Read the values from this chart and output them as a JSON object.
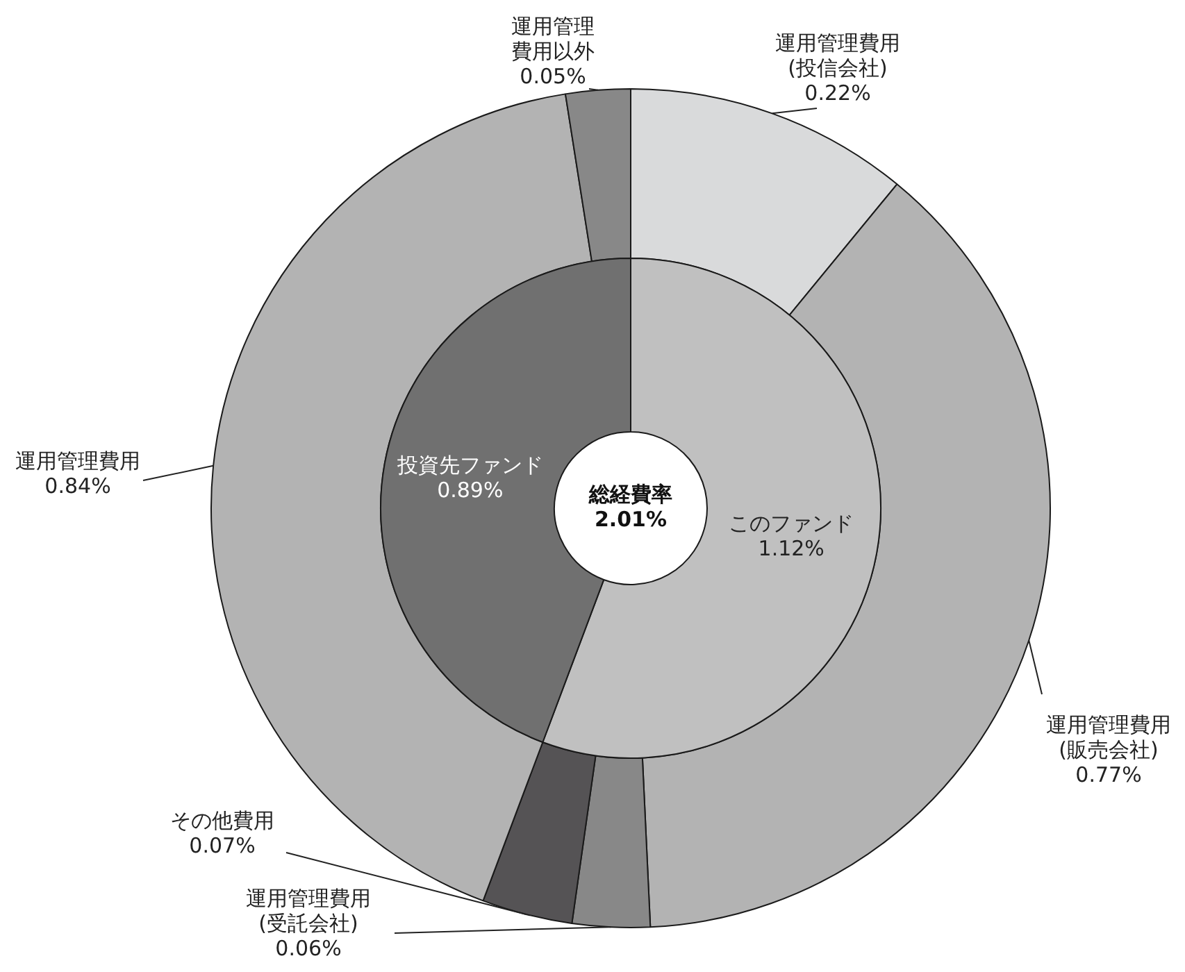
{
  "chart_data": [
    {
      "type": "donut",
      "title": "総経費率",
      "subtitle": "2.01%",
      "categories": [
        "このファンド",
        "投資先ファンド"
      ],
      "values": [
        1.12,
        0.89
      ],
      "colors": [
        "#c0c0c0",
        "#707070"
      ],
      "value_labels": [
        "1.12%",
        "0.89%"
      ]
    },
    {
      "type": "donut",
      "categories": [
        "運用管理費用(投信会社)",
        "運用管理費用(販売会社)",
        "運用管理費用(受託会社)",
        "その他費用",
        "運用管理費用",
        "運用管理費用以外"
      ],
      "values": [
        0.22,
        0.77,
        0.06,
        0.07,
        0.84,
        0.05
      ],
      "colors": [
        "#d9dadb",
        "#b3b3b3",
        "#888888",
        "#555355",
        "#b3b3b3",
        "#888888"
      ],
      "value_labels": [
        "0.22%",
        "0.77%",
        "0.06%",
        "0.07%",
        "0.84%",
        "0.05%"
      ]
    }
  ]
}
